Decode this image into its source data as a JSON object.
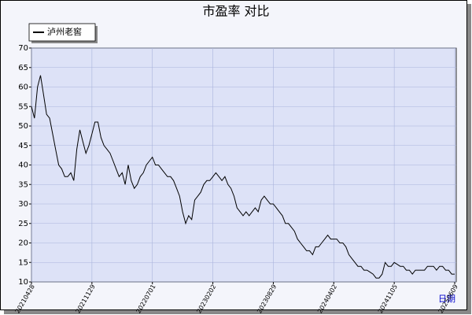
{
  "chart_data": {
    "type": "line",
    "title": "市盈率  对比",
    "xlabel": "日期",
    "categories": [
      "20210428",
      null,
      null,
      null,
      null,
      null,
      null,
      null,
      null,
      null,
      null,
      null,
      null,
      null,
      null,
      null,
      null,
      null,
      null,
      null,
      "20211129",
      null,
      null,
      null,
      null,
      null,
      null,
      null,
      null,
      null,
      null,
      null,
      null,
      null,
      null,
      null,
      null,
      null,
      null,
      null,
      "20220701",
      null,
      null,
      null,
      null,
      null,
      null,
      null,
      null,
      null,
      null,
      null,
      null,
      null,
      null,
      null,
      null,
      null,
      null,
      null,
      "20230202",
      null,
      null,
      null,
      null,
      null,
      null,
      null,
      null,
      null,
      null,
      null,
      null,
      null,
      null,
      null,
      null,
      null,
      null,
      null,
      "20230829",
      null,
      null,
      null,
      null,
      null,
      null,
      null,
      null,
      null,
      null,
      null,
      null,
      null,
      null,
      null,
      null,
      null,
      null,
      null,
      "20240402",
      null,
      null,
      null,
      null,
      null,
      null,
      null,
      null,
      null,
      null,
      null,
      null,
      null,
      null,
      null,
      null,
      null,
      null,
      null,
      "20241105",
      null,
      null,
      null,
      null,
      null,
      null,
      null,
      null,
      null,
      null,
      null,
      null,
      null,
      null,
      null,
      null,
      null,
      null,
      null,
      "20250609"
    ],
    "series": [
      {
        "name": "泸州老窖",
        "color": "#000000",
        "values": [
          55,
          52,
          60,
          63,
          58,
          53,
          52,
          48,
          44,
          40,
          39,
          37,
          37,
          38,
          36,
          44,
          49,
          46,
          43,
          45,
          48,
          51,
          51,
          47,
          45,
          44,
          43,
          41,
          39,
          37,
          38,
          35,
          40,
          36,
          34,
          35,
          37,
          38,
          40,
          41,
          42,
          40,
          40,
          39,
          38,
          37,
          37,
          36,
          34,
          32,
          28,
          25,
          27,
          26,
          31,
          32,
          33,
          35,
          36,
          36,
          37,
          38,
          37,
          36,
          37,
          35,
          34,
          32,
          29,
          28,
          27,
          28,
          27,
          28,
          29,
          28,
          31,
          32,
          31,
          30,
          30,
          29,
          28,
          27,
          25,
          25,
          24,
          23,
          21,
          20,
          19,
          18,
          18,
          17,
          19,
          19,
          20,
          21,
          22,
          21,
          21,
          21,
          20,
          20,
          19,
          17,
          16,
          15,
          14,
          14,
          13,
          13,
          12.5,
          12,
          11,
          11,
          12,
          15,
          14,
          14,
          15,
          14.5,
          14,
          14,
          13,
          13,
          12,
          13,
          13,
          13,
          13,
          14,
          14,
          14,
          13,
          14,
          14,
          13,
          13,
          12,
          12
        ]
      }
    ],
    "ylim": [
      10,
      70
    ],
    "yticks": [
      10,
      15,
      20,
      25,
      30,
      35,
      40,
      45,
      50,
      55,
      60,
      65,
      70
    ],
    "grid": true,
    "legend": "top-left"
  }
}
